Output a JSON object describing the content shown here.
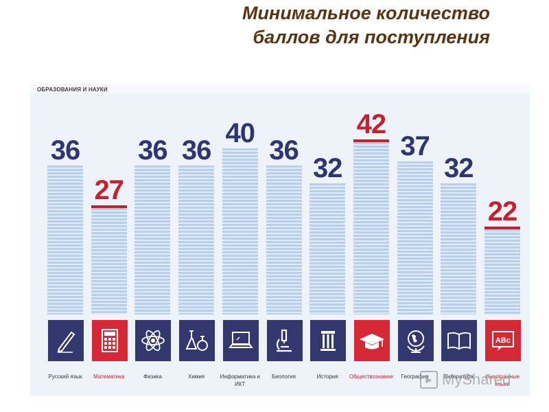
{
  "title": {
    "line1": "Минимальное количество",
    "line2": "баллов для поступления"
  },
  "org_label": "ОБРАЗОВАНИЯ И НАУКИ",
  "colors": {
    "bar_value": "#2e3570",
    "highlight": "#c6202f",
    "tile": "#32376e",
    "tile_highlight": "#d52a36"
  },
  "chart_data": {
    "type": "bar",
    "categories": [
      "Русский язык",
      "Математика",
      "Физика",
      "Химия",
      "Информатика и ИКТ",
      "Биология",
      "История",
      "Обществознание",
      "География",
      "Литература",
      "Иностранные языки"
    ],
    "values": [
      36,
      27,
      36,
      36,
      40,
      36,
      32,
      42,
      37,
      32,
      22
    ],
    "highlighted": [
      "Математика",
      "Обществознание",
      "Иностранные языки"
    ],
    "icons": [
      "pen-icon",
      "calculator-icon",
      "atom-icon",
      "flask-icon",
      "laptop-icon",
      "microscope-icon",
      "column-icon",
      "graduation-cap-icon",
      "globe-icon",
      "book-icon",
      "abc-icon"
    ],
    "data_labels": true,
    "grid": false,
    "legend": "none"
  },
  "watermark": "MyShared"
}
